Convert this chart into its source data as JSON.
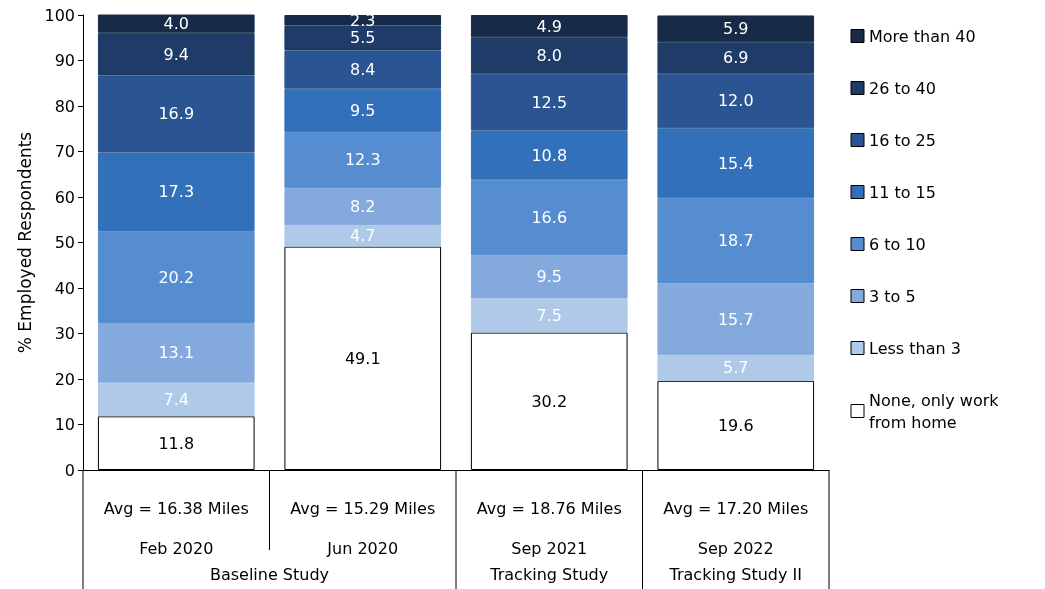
{
  "chart_data": {
    "type": "bar",
    "stacked": true,
    "ylabel": "% Employed Respondents",
    "categories": [
      "Feb 2020",
      "Jun 2020",
      "Sep 2021",
      "Sep 2022"
    ],
    "series": [
      {
        "name": "None, only work from home",
        "color": "#ffffff",
        "values": [
          11.8,
          49.1,
          30.2,
          19.6
        ],
        "value_labels": [
          "11.8",
          "49.1",
          "30.2",
          "19.6"
        ]
      },
      {
        "name": "Less than 3",
        "color": "#b0c9e8",
        "values": [
          7.4,
          4.7,
          7.5,
          5.7
        ],
        "value_labels": [
          "7.4",
          "4.7",
          "7.5",
          "5.7"
        ]
      },
      {
        "name": "3 to 5",
        "color": "#84aadd",
        "values": [
          13.1,
          8.2,
          9.5,
          15.7
        ],
        "value_labels": [
          "13.1",
          "8.2",
          "9.5",
          "15.7"
        ]
      },
      {
        "name": "6 to 10",
        "color": "#568dd0",
        "values": [
          20.2,
          12.3,
          16.6,
          18.7
        ],
        "value_labels": [
          "20.2",
          "12.3",
          "16.6",
          "18.7"
        ]
      },
      {
        "name": "11 to 15",
        "color": "#3370ba",
        "values": [
          17.3,
          9.5,
          10.8,
          15.4
        ],
        "value_labels": [
          "17.3",
          "9.5",
          "10.8",
          "15.4"
        ]
      },
      {
        "name": "16 to 25",
        "color": "#2a5592",
        "values": [
          16.9,
          8.4,
          12.5,
          12.0
        ],
        "value_labels": [
          "16.9",
          "8.4",
          "12.5",
          "12.0"
        ]
      },
      {
        "name": "26 to 40",
        "color": "#1f3c68",
        "values": [
          9.4,
          5.5,
          8.0,
          6.9
        ],
        "value_labels": [
          "9.4",
          "5.5",
          "8.0",
          "6.9"
        ]
      },
      {
        "name": "More than 40",
        "color": "#172a48",
        "values": [
          4.0,
          2.3,
          4.9,
          5.9
        ],
        "value_labels": [
          "4.0",
          "2.3",
          "4.9",
          "5.9"
        ]
      }
    ],
    "ylim": [
      0,
      100
    ],
    "yticks": [
      0,
      10,
      20,
      30,
      40,
      50,
      60,
      70,
      80,
      90,
      100
    ],
    "legend": "right",
    "grid": false,
    "annotations": [
      "Avg = 16.38 Miles",
      "Avg = 15.29 Miles",
      "Avg = 18.76 Miles",
      "Avg = 17.20 Miles",
      "Baseline Study",
      "Tracking Study",
      "Tracking Study II"
    ]
  }
}
